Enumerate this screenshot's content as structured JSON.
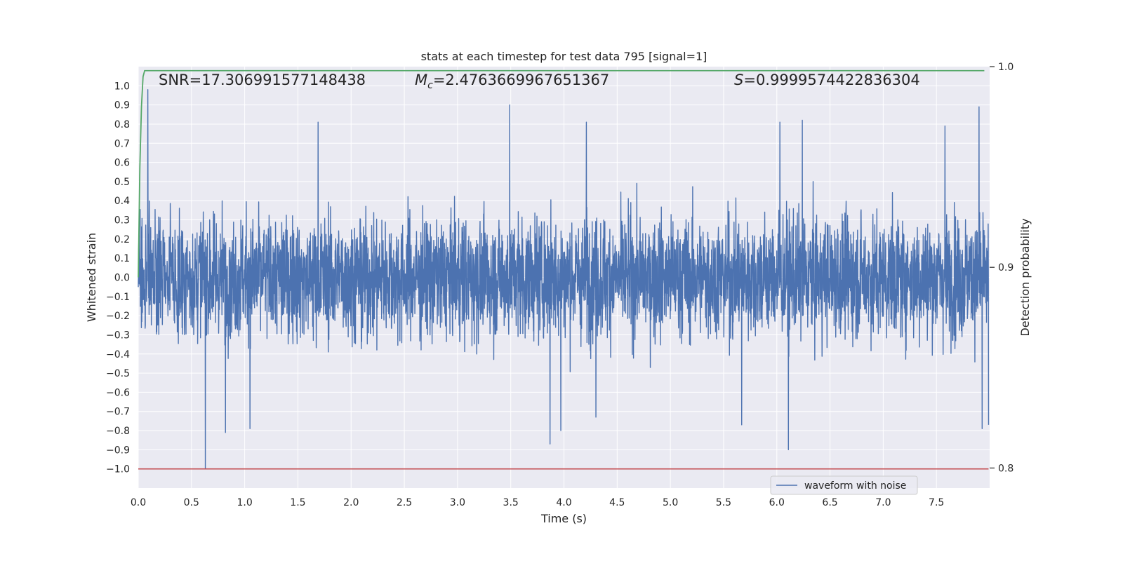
{
  "chart_data": {
    "type": "line",
    "title": "stats at each timestep for test data 795 [signal=1]",
    "xlabel": "Time (s)",
    "ylabel": "Whitened strain",
    "y2label": "Detection probability",
    "xlim": [
      0.0,
      8.0
    ],
    "ylim": [
      -1.1,
      1.1
    ],
    "y2lim": [
      0.79,
      1.0
    ],
    "x_ticks": [
      0.0,
      0.5,
      1.0,
      1.5,
      2.0,
      2.5,
      3.0,
      3.5,
      4.0,
      4.5,
      5.0,
      5.5,
      6.0,
      6.5,
      7.0,
      7.5
    ],
    "x_tick_labels": [
      "0.0",
      "0.5",
      "1.0",
      "1.5",
      "2.0",
      "2.5",
      "3.0",
      "3.5",
      "4.0",
      "4.5",
      "5.0",
      "5.5",
      "6.0",
      "6.5",
      "7.0",
      "7.5"
    ],
    "y_ticks": [
      1.0,
      0.9,
      0.8,
      0.7,
      0.6,
      0.5,
      0.4,
      0.3,
      0.2,
      0.1,
      0.0,
      -0.1,
      -0.2,
      -0.3,
      -0.4,
      -0.5,
      -0.6,
      -0.7,
      -0.8,
      -0.9,
      -1.0
    ],
    "y_tick_labels": [
      "1.0",
      "0.9",
      "0.8",
      "0.7",
      "0.6",
      "0.5",
      "0.4",
      "0.3",
      "0.2",
      "0.1",
      "0.0",
      "−0.1",
      "−0.2",
      "−0.3",
      "−0.4",
      "−0.5",
      "−0.6",
      "−0.7",
      "−0.8",
      "−0.9",
      "−1.0"
    ],
    "y2_ticks": [
      1.0,
      0.9,
      0.8
    ],
    "y2_tick_labels": [
      "1.0",
      "0.9",
      "0.8"
    ],
    "grid": true,
    "legend_position": "bottom-right",
    "annotations": {
      "snr": "SNR=17.306991577148438",
      "mc_symbol": "M",
      "mc_subscript": "c",
      "mc_value": "=2.4763669967651367",
      "s_symbol": "S",
      "s_value": "=0.9999574422836304"
    },
    "series": [
      {
        "name": "waveform with noise",
        "axis": "left",
        "color": "#4c72b0",
        "x_range": [
          0.0,
          7.99
        ],
        "sample_count": 4096,
        "envelope_max": 1.0,
        "envelope_min": -1.0,
        "peaks": [
          {
            "x": 0.09,
            "y": 0.98
          },
          {
            "x": 0.63,
            "y": -1.0
          },
          {
            "x": 3.49,
            "y": 0.9
          },
          {
            "x": 7.9,
            "y": 0.89
          },
          {
            "x": 3.87,
            "y": -0.87
          },
          {
            "x": 6.11,
            "y": -0.9
          },
          {
            "x": 1.69,
            "y": 0.81
          },
          {
            "x": 6.24,
            "y": 0.82
          },
          {
            "x": 4.21,
            "y": 0.81
          },
          {
            "x": 6.03,
            "y": 0.81
          },
          {
            "x": 7.58,
            "y": 0.79
          },
          {
            "x": 0.82,
            "y": -0.81
          },
          {
            "x": 3.97,
            "y": -0.8
          },
          {
            "x": 1.05,
            "y": -0.79
          },
          {
            "x": 7.93,
            "y": -0.79
          },
          {
            "x": 5.67,
            "y": -0.77
          },
          {
            "x": 7.99,
            "y": -0.77
          },
          {
            "x": 4.3,
            "y": -0.73
          }
        ]
      },
      {
        "name": "",
        "axis": "right",
        "color": "#55a868",
        "x": [
          0.0,
          0.015,
          0.03,
          0.045,
          0.06,
          7.95
        ],
        "values": [
          0.895,
          0.95,
          0.98,
          0.995,
          0.998,
          0.998
        ]
      },
      {
        "name": "",
        "axis": "left",
        "color": "#c44e52",
        "x": [
          0.0,
          7.99
        ],
        "values": [
          -1.0,
          -1.0
        ]
      }
    ]
  },
  "colors": {
    "plot_background": "#eaeaf2",
    "grid": "#ffffff",
    "text": "#262626"
  }
}
